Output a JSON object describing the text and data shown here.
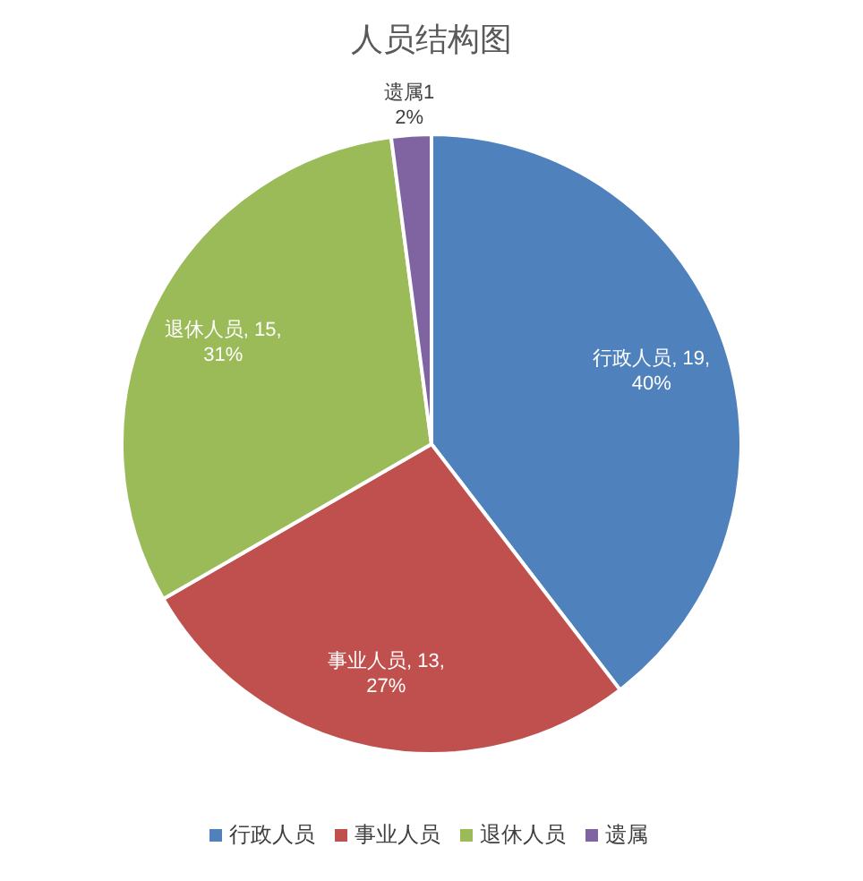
{
  "chart_data": {
    "type": "pie",
    "title": "人员结构图",
    "categories": [
      "行政人员",
      "事业人员",
      "退休人员",
      "遗属"
    ],
    "values": [
      19,
      13,
      15,
      1
    ],
    "colors": [
      "#4f81bd",
      "#c0504d",
      "#9bbb59",
      "#8064a2"
    ],
    "value_labels": [
      "行政人员, 19,\n40%",
      "事业人员, 13,\n27%",
      "退休人员, 15,\n31%",
      "遗属1\n2%"
    ],
    "legend": "bottom"
  }
}
